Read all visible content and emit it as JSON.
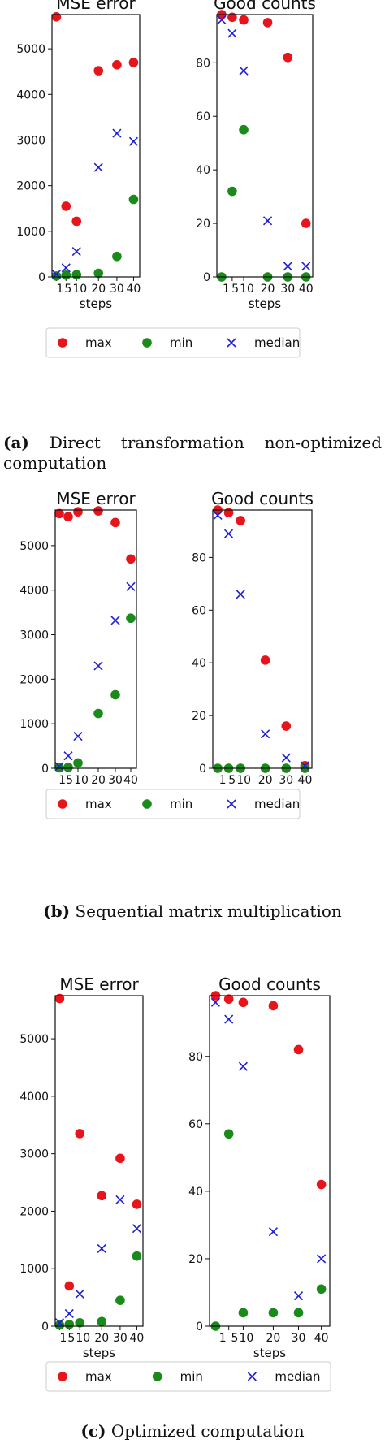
{
  "legend": {
    "max": "max",
    "min": "min",
    "median": "median"
  },
  "colors": {
    "max": "#e8141b",
    "min": "#1a8a1a",
    "median": "#1f1fd6"
  },
  "chart_data": [
    {
      "type": "scatter",
      "panel": "a",
      "title": "MSE error",
      "xlabel": "steps",
      "x": [
        1,
        5,
        10,
        20,
        30,
        40
      ],
      "xticklabels": [
        "1",
        "5",
        "10",
        "20",
        "30",
        "40"
      ],
      "yticks": [
        0,
        1000,
        2000,
        3000,
        4000,
        5000
      ],
      "ylim": [
        0,
        5750
      ],
      "series": [
        {
          "name": "max",
          "marker": "circle",
          "values": [
            5700,
            1550,
            1220,
            4520,
            4650,
            4700
          ]
        },
        {
          "name": "min",
          "marker": "circle",
          "values": [
            20,
            40,
            50,
            80,
            450,
            1700
          ]
        },
        {
          "name": "median",
          "marker": "x",
          "values": [
            60,
            200,
            560,
            2400,
            3150,
            2970
          ]
        }
      ]
    },
    {
      "type": "scatter",
      "panel": "a",
      "title": "Good counts",
      "xlabel": "steps",
      "x": [
        1,
        5,
        10,
        20,
        30,
        40
      ],
      "xticklabels": [
        "1",
        "5",
        "10",
        "20",
        "30",
        "40"
      ],
      "yticks": [
        0,
        20,
        40,
        60,
        80
      ],
      "ylim": [
        0,
        98
      ],
      "series": [
        {
          "name": "max",
          "marker": "circle",
          "values": [
            98,
            97,
            96,
            95,
            82,
            20
          ]
        },
        {
          "name": "min",
          "marker": "circle",
          "values": [
            0,
            32,
            55,
            0,
            0,
            0
          ]
        },
        {
          "name": "median",
          "marker": "x",
          "values": [
            96,
            91,
            77,
            21,
            4,
            4
          ]
        }
      ]
    },
    {
      "type": "scatter",
      "panel": "b",
      "title": "MSE error",
      "xlabel": "steps",
      "x": [
        1,
        5,
        10,
        20,
        30,
        40
      ],
      "xticklabels": [
        "1",
        "5",
        "10",
        "20",
        "30",
        "40"
      ],
      "yticks": [
        0,
        1000,
        2000,
        3000,
        4000,
        5000
      ],
      "ylim": [
        0,
        5800
      ],
      "series": [
        {
          "name": "max",
          "marker": "circle",
          "values": [
            5720,
            5650,
            5760,
            5780,
            5520,
            4700
          ]
        },
        {
          "name": "min",
          "marker": "circle",
          "values": [
            10,
            20,
            120,
            1230,
            1650,
            3370
          ]
        },
        {
          "name": "median",
          "marker": "x",
          "values": [
            40,
            280,
            720,
            2300,
            3320,
            4080
          ]
        }
      ]
    },
    {
      "type": "scatter",
      "panel": "b",
      "title": "Good counts",
      "xlabel": "steps",
      "x": [
        1,
        5,
        10,
        20,
        30,
        40
      ],
      "xticklabels": [
        "1",
        "5",
        "10",
        "20",
        "30",
        "40"
      ],
      "yticks": [
        0,
        20,
        40,
        60,
        80
      ],
      "ylim": [
        0,
        98
      ],
      "series": [
        {
          "name": "max",
          "marker": "circle",
          "values": [
            98,
            97,
            94,
            41,
            16,
            1
          ]
        },
        {
          "name": "min",
          "marker": "circle",
          "values": [
            0,
            0,
            0,
            0,
            0,
            0
          ]
        },
        {
          "name": "median",
          "marker": "x",
          "values": [
            96,
            89,
            66,
            13,
            4,
            1
          ]
        }
      ]
    },
    {
      "type": "scatter",
      "panel": "c",
      "title": "MSE error",
      "xlabel": "steps",
      "x": [
        1,
        5,
        10,
        20,
        30,
        40
      ],
      "xticklabels": [
        "1",
        "5",
        "10",
        "20",
        "30",
        "40"
      ],
      "yticks": [
        0,
        1000,
        2000,
        3000,
        4000,
        5000
      ],
      "ylim": [
        0,
        5750
      ],
      "series": [
        {
          "name": "max",
          "marker": "circle",
          "values": [
            5700,
            700,
            3350,
            2270,
            2920,
            2120
          ]
        },
        {
          "name": "min",
          "marker": "circle",
          "values": [
            20,
            30,
            60,
            80,
            450,
            1220
          ]
        },
        {
          "name": "median",
          "marker": "x",
          "values": [
            60,
            220,
            560,
            1350,
            2200,
            1700
          ]
        }
      ]
    },
    {
      "type": "scatter",
      "panel": "c",
      "title": "Good counts",
      "xlabel": "steps",
      "x": [
        1,
        5,
        10,
        20,
        30,
        40
      ],
      "xticklabels": [
        "1",
        "5",
        "10",
        "20",
        "30",
        "40"
      ],
      "yticks": [
        0,
        20,
        40,
        60,
        80
      ],
      "ylim": [
        0,
        98
      ],
      "series": [
        {
          "name": "max",
          "marker": "circle",
          "values": [
            98,
            97,
            96,
            95,
            82,
            42
          ]
        },
        {
          "name": "min",
          "marker": "circle",
          "values": [
            0,
            57,
            4,
            4,
            4,
            11
          ]
        },
        {
          "name": "median",
          "marker": "x",
          "values": [
            96,
            91,
            77,
            28,
            9,
            20
          ]
        }
      ]
    }
  ],
  "captions": {
    "a": {
      "label": "(a)",
      "text": "Direct transformation non-optimized computation"
    },
    "b": {
      "label": "(b)",
      "text": "Sequential matrix multiplication"
    },
    "c": {
      "label": "(c)",
      "text": "Optimized computation"
    }
  }
}
